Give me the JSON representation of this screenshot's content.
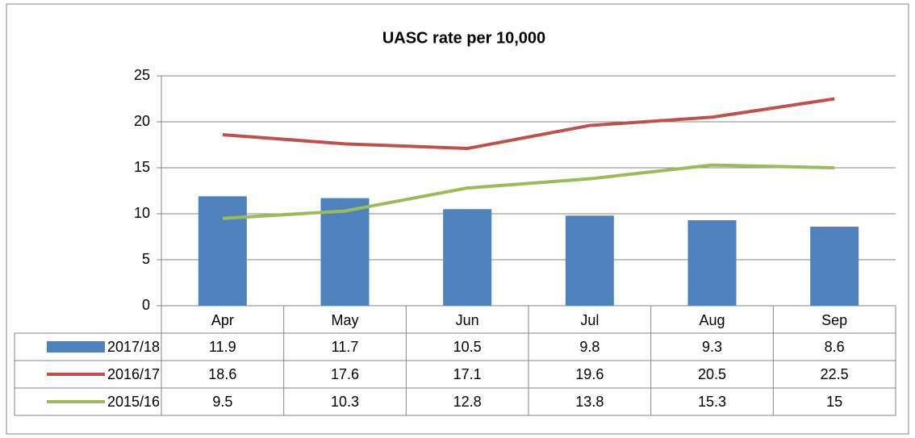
{
  "chart_data": {
    "type": "bar",
    "title": "UASC rate per 10,000",
    "categories": [
      "Apr",
      "May",
      "Jun",
      "Jul",
      "Aug",
      "Sep"
    ],
    "series": [
      {
        "name": "2017/18",
        "type": "bar",
        "color": "#4f81bd",
        "values": [
          11.9,
          11.7,
          10.5,
          9.8,
          9.3,
          8.6
        ]
      },
      {
        "name": "2016/17",
        "type": "line",
        "color": "#c0504d",
        "values": [
          18.6,
          17.6,
          17.1,
          19.6,
          20.5,
          22.5
        ]
      },
      {
        "name": "2015/16",
        "type": "line",
        "color": "#9bbb59",
        "values": [
          9.5,
          10.3,
          12.8,
          13.8,
          15.3,
          15
        ]
      }
    ],
    "ylim": [
      0,
      25
    ],
    "yticks": [
      0,
      5,
      10,
      15,
      20,
      25
    ],
    "grid": true
  }
}
